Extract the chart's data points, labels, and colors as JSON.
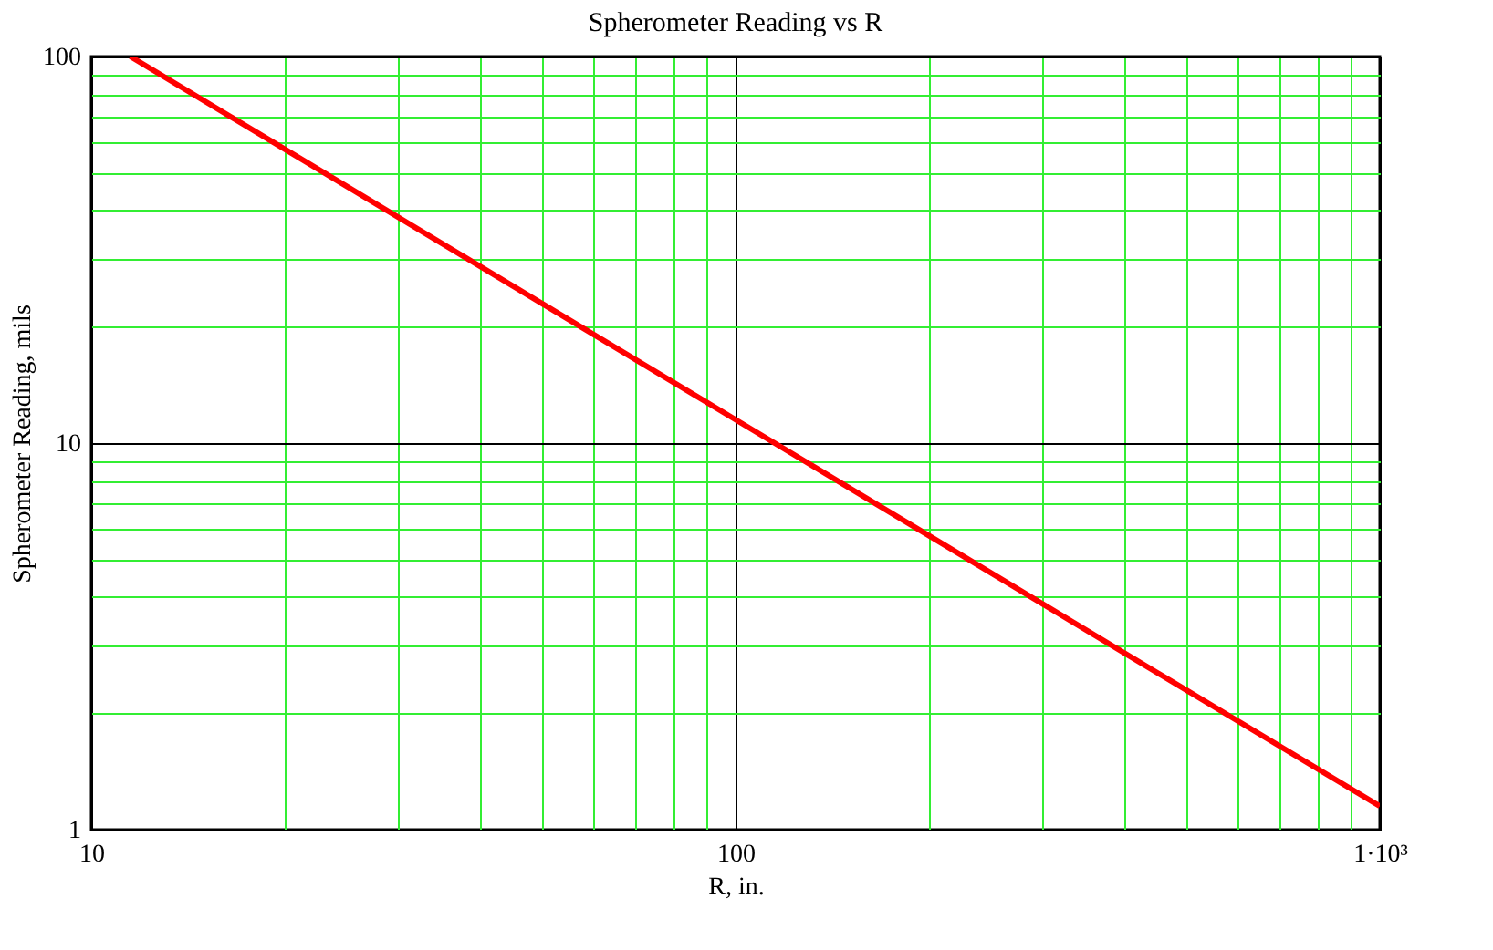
{
  "chart_data": {
    "type": "line",
    "title": "Spherometer Reading vs R",
    "xlabel": "R, in.",
    "ylabel": "Spherometer Reading, mils",
    "x": [
      11.5,
      20,
      50,
      100,
      200,
      500,
      1000
    ],
    "series": [
      {
        "color": "#ff0000",
        "values": [
          100,
          57.5,
          23,
          11.5,
          5.75,
          2.3,
          1.15
        ]
      }
    ],
    "log": "xy",
    "xlim": [
      10,
      1000
    ],
    "ylim": [
      1,
      100
    ],
    "xticks": [
      10,
      {
        "value": 20,
        "label": null
      },
      {
        "value": 30,
        "label": null
      },
      {
        "value": 40,
        "label": null
      },
      {
        "value": 50,
        "label": null
      },
      {
        "value": 60,
        "label": null
      },
      {
        "value": 70,
        "label": null
      },
      {
        "value": 80,
        "label": null
      },
      {
        "value": 90,
        "label": null
      },
      100,
      {
        "value": 200,
        "label": null
      },
      {
        "value": 300,
        "label": null
      },
      {
        "value": 400,
        "label": null
      },
      {
        "value": 500,
        "label": null
      },
      {
        "value": 600,
        "label": null
      },
      {
        "value": 700,
        "label": null
      },
      {
        "value": 800,
        "label": null
      },
      {
        "value": 900,
        "label": null
      },
      {
        "value": 1000,
        "label": "1·10³"
      }
    ],
    "yticks": [
      1,
      {
        "value": 2,
        "label": null
      },
      {
        "value": 3,
        "label": null
      },
      {
        "value": 4,
        "label": null
      },
      {
        "value": 5,
        "label": null
      },
      {
        "value": 6,
        "label": null
      },
      {
        "value": 7,
        "label": null
      },
      {
        "value": 8,
        "label": null
      },
      {
        "value": 9,
        "label": null
      },
      10,
      {
        "value": 20,
        "label": null
      },
      {
        "value": 30,
        "label": null
      },
      {
        "value": 40,
        "label": null
      },
      {
        "value": 50,
        "label": null
      },
      {
        "value": 60,
        "label": null
      },
      {
        "value": 70,
        "label": null
      },
      {
        "value": 80,
        "label": null
      },
      {
        "value": 90,
        "label": null
      },
      100
    ],
    "grid": true,
    "line_style": "solid",
    "marker": "none"
  }
}
